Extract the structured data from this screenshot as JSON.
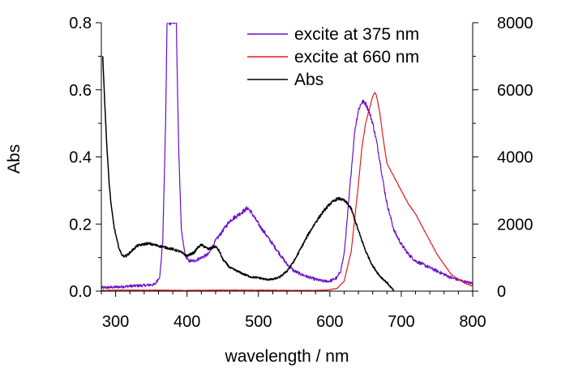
{
  "chart_data": {
    "type": "line",
    "xlabel": "wavelength / nm",
    "ylabel": "Abs",
    "y2label": "",
    "xlim": [
      280,
      800
    ],
    "ylim": [
      0,
      0.8
    ],
    "y2lim": [
      0,
      8000
    ],
    "x_ticks": [
      300,
      400,
      500,
      600,
      700,
      800
    ],
    "y_ticks": [
      0.0,
      0.2,
      0.4,
      0.6,
      0.8
    ],
    "y_tick_labels": [
      "0.0",
      "0.2",
      "0.4",
      "0.6",
      "0.8"
    ],
    "y2_ticks": [
      0,
      2000,
      4000,
      6000,
      8000
    ],
    "grid": false,
    "legend_position": "top-right",
    "series": [
      {
        "name": "excite at 375 nm",
        "color": "#6a0dcc",
        "axis": "right",
        "noise": 70,
        "x": [
          280,
          300,
          320,
          340,
          355,
          362,
          366,
          370,
          372,
          375,
          378,
          381,
          383,
          385,
          388,
          392,
          397,
          402,
          410,
          420,
          430,
          440,
          450,
          460,
          470,
          480,
          485,
          490,
          500,
          510,
          520,
          530,
          540,
          550,
          560,
          570,
          580,
          590,
          600,
          610,
          615,
          620,
          625,
          630,
          635,
          640,
          645,
          650,
          655,
          660,
          665,
          670,
          675,
          680,
          690,
          700,
          710,
          720,
          730,
          740,
          750,
          760,
          770,
          780,
          790,
          800
        ],
        "y": [
          100,
          120,
          150,
          170,
          200,
          450,
          1500,
          5000,
          8000,
          8000,
          8000,
          8000,
          8000,
          8000,
          4500,
          1800,
          1100,
          900,
          900,
          1000,
          1100,
          1500,
          1800,
          2100,
          2250,
          2400,
          2480,
          2350,
          2000,
          1700,
          1400,
          1100,
          800,
          600,
          500,
          420,
          350,
          300,
          300,
          400,
          600,
          1100,
          2300,
          3600,
          4800,
          5400,
          5650,
          5600,
          5350,
          5000,
          4500,
          3900,
          3200,
          2600,
          1800,
          1400,
          1100,
          900,
          800,
          700,
          600,
          500,
          400,
          340,
          270,
          230
        ]
      },
      {
        "name": "excite at 660 nm",
        "color": "#e41a1c",
        "axis": "right",
        "noise": 15,
        "x": [
          280,
          300,
          350,
          400,
          450,
          500,
          550,
          580,
          600,
          610,
          620,
          630,
          640,
          645,
          650,
          655,
          660,
          663,
          665,
          670,
          675,
          680,
          690,
          700,
          710,
          720,
          730,
          740,
          750,
          760,
          770,
          780,
          790,
          800
        ],
        "y": [
          20,
          30,
          30,
          20,
          30,
          30,
          20,
          20,
          40,
          80,
          300,
          1200,
          3200,
          4300,
          5000,
          5400,
          5800,
          5920,
          5850,
          5300,
          4500,
          3800,
          3400,
          3000,
          2600,
          2300,
          1900,
          1500,
          1100,
          800,
          500,
          350,
          230,
          150
        ]
      },
      {
        "name": "Abs",
        "color": "#000000",
        "axis": "left",
        "noise": 0.004,
        "x": [
          282,
          285,
          288,
          291,
          294,
          298,
          302,
          306,
          310,
          315,
          320,
          330,
          340,
          345,
          350,
          360,
          370,
          380,
          390,
          400,
          410,
          415,
          420,
          425,
          430,
          435,
          440,
          445,
          450,
          460,
          470,
          480,
          490,
          500,
          510,
          520,
          530,
          540,
          550,
          560,
          570,
          580,
          590,
          600,
          610,
          615,
          620,
          625,
          630,
          640,
          650,
          660,
          665,
          670,
          680,
          690
        ],
        "y": [
          0.7,
          0.55,
          0.42,
          0.32,
          0.25,
          0.19,
          0.15,
          0.12,
          0.105,
          0.105,
          0.115,
          0.135,
          0.14,
          0.142,
          0.14,
          0.135,
          0.13,
          0.125,
          0.118,
          0.105,
          0.115,
          0.13,
          0.138,
          0.132,
          0.125,
          0.13,
          0.133,
          0.12,
          0.095,
          0.07,
          0.06,
          0.05,
          0.042,
          0.04,
          0.035,
          0.035,
          0.042,
          0.06,
          0.09,
          0.13,
          0.17,
          0.205,
          0.235,
          0.26,
          0.275,
          0.275,
          0.27,
          0.26,
          0.245,
          0.18,
          0.12,
          0.075,
          0.06,
          0.045,
          0.025,
          0.0
        ]
      }
    ]
  }
}
